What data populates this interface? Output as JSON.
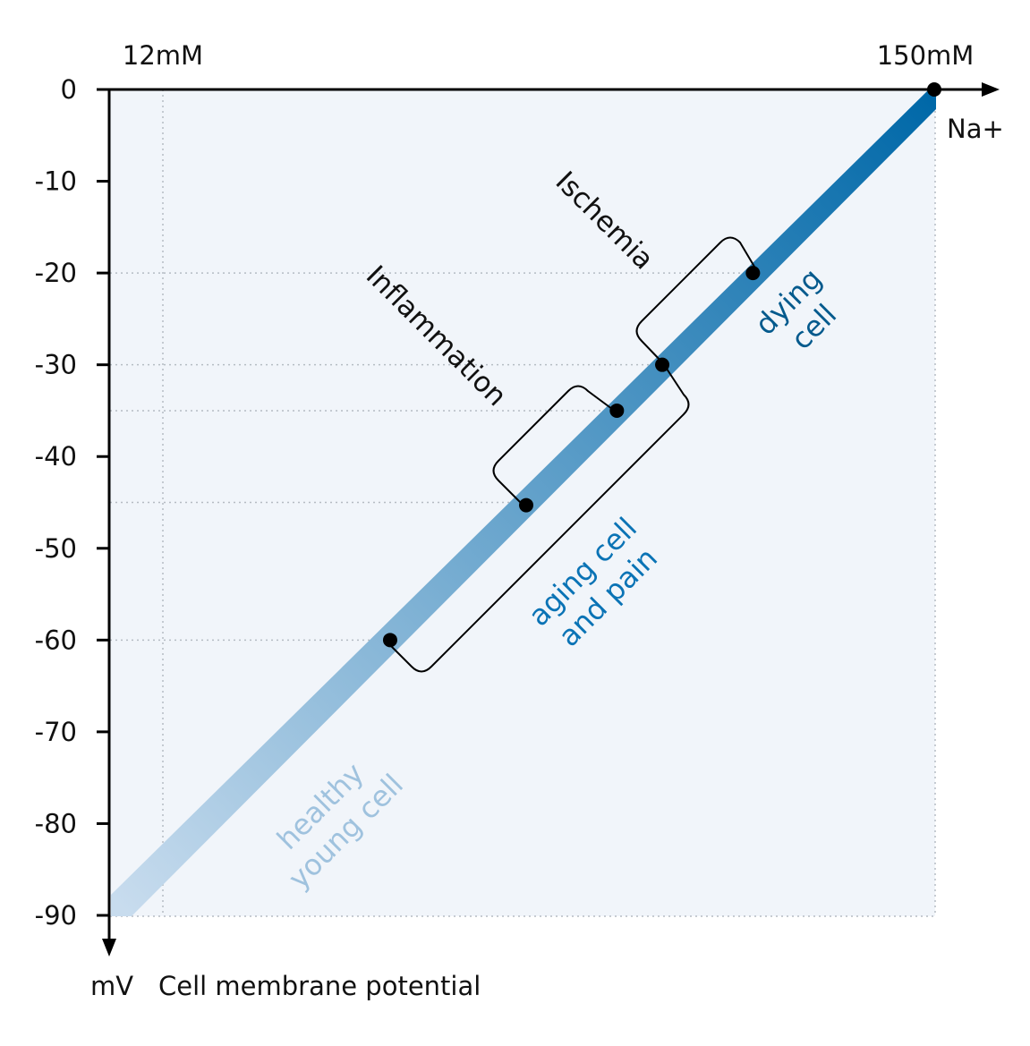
{
  "chart_data": {
    "type": "line",
    "title": "",
    "top_labels": {
      "left": "12mM",
      "right": "150mM"
    },
    "xlabel": "Na+",
    "ylabel_unit": "mV",
    "ylabel": "Cell membrane potential",
    "yticks": [
      0,
      -10,
      -20,
      -30,
      -40,
      -50,
      -60,
      -70,
      -80,
      -90
    ],
    "ytick_labels": [
      "0",
      "-10",
      "-20",
      "-30",
      "-40",
      "-50",
      "-60",
      "-70",
      "-80",
      "-90"
    ],
    "ylim": [
      -90,
      0
    ],
    "grid_levels": [
      -20,
      -30,
      -35,
      -45,
      -60
    ],
    "line": {
      "from": [
        0,
        -90
      ],
      "to": [
        1,
        0
      ],
      "color_start": "#c8dcee",
      "color_end": "#0068a8"
    },
    "points": [
      {
        "x": 0.3333,
        "y": -60
      },
      {
        "x": 0.5,
        "y": -45.3
      },
      {
        "x": 0.6111,
        "y": -35
      },
      {
        "x": 0.6667,
        "y": -30
      },
      {
        "x": 0.7778,
        "y": -20
      },
      {
        "x": 1.0,
        "y": 0
      }
    ],
    "brackets": [
      {
        "label": "Inflammation",
        "from_y": -45.3,
        "to_y": -35
      },
      {
        "label": "Ischemia",
        "from_y": -30,
        "to_y": -20
      },
      {
        "label": "aging cell and pain",
        "from_y": -60,
        "to_y": -30
      }
    ],
    "annotations": [
      {
        "id": "healthy",
        "lines": [
          "healthy",
          "young cell"
        ],
        "color": "#9fc2de"
      },
      {
        "id": "aging",
        "lines": [
          "aging cell",
          "and pain"
        ],
        "color": "#0a73b5"
      },
      {
        "id": "dying",
        "lines": [
          "dying",
          "cell"
        ],
        "color": "#045a8d"
      },
      {
        "id": "inflammation",
        "lines": [
          "Inflammation"
        ],
        "color": "#111111"
      },
      {
        "id": "ischemia",
        "lines": [
          "Ischemia"
        ],
        "color": "#111111"
      }
    ]
  }
}
